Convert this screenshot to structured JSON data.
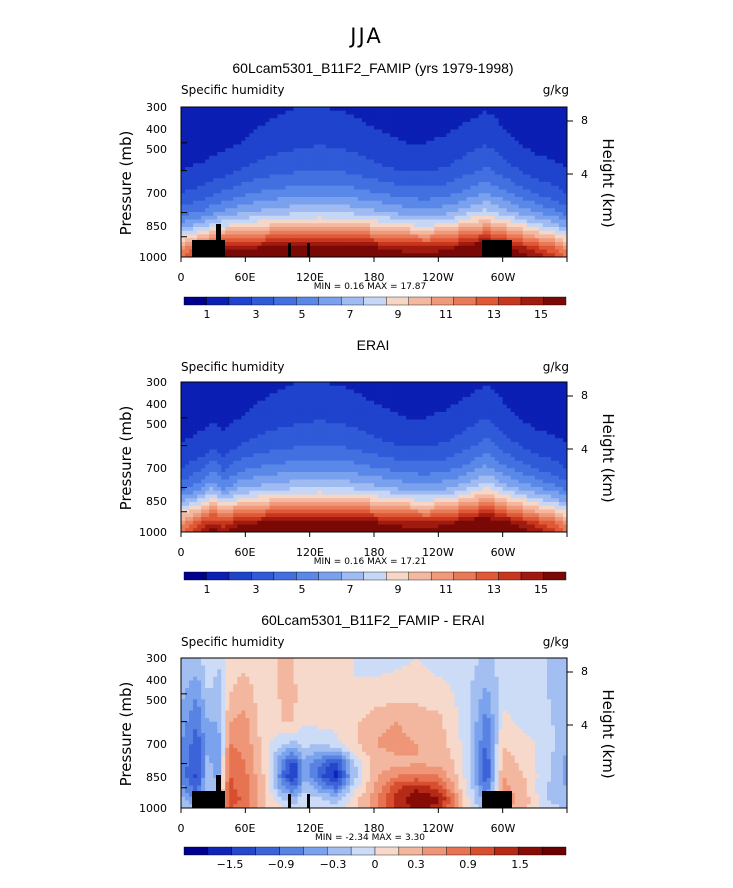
{
  "figure": {
    "title": "JJA"
  },
  "chart_data": [
    {
      "type": "heatmap",
      "title": "60Lcam5301_B11F2_FAMIP (yrs 1979-1998)",
      "left_label": "Specific humidity",
      "units": "g/kg",
      "xlabel": "",
      "ylabel": "Pressure (mb)",
      "ylabel_right": "Height (km)",
      "x_ticks": [
        "0",
        "60E",
        "120E",
        "180",
        "120W",
        "60W"
      ],
      "y_ticks": [
        "300",
        "400",
        "500",
        "700",
        "850",
        "1000"
      ],
      "y_right_ticks": [
        "8",
        "4"
      ],
      "stats": {
        "min_label": "MIN =",
        "min": "0.16",
        "max_label": "MAX =",
        "max": "17.87"
      },
      "colorbar_labels": [
        "1",
        "3",
        "5",
        "7",
        "9",
        "11",
        "13",
        "15"
      ],
      "colorbar_levels": [
        0,
        1,
        2,
        3,
        4,
        5,
        6,
        7,
        8,
        9,
        10,
        11,
        12,
        13,
        14,
        15,
        16
      ],
      "columns_lon": [
        0,
        20,
        30,
        40,
        55,
        70,
        90,
        110,
        130,
        150,
        170,
        190,
        210,
        230,
        250,
        270,
        285,
        300,
        315,
        330,
        350,
        360
      ],
      "pressure_rows": [
        300,
        400,
        500,
        600,
        700,
        775,
        850,
        925,
        1000
      ],
      "values": [
        [
          0.4,
          0.4,
          0.4,
          0.4,
          0.5,
          0.6,
          0.8,
          1.0,
          1.0,
          0.9,
          0.7,
          0.5,
          0.4,
          0.4,
          0.5,
          0.7,
          0.9,
          0.6,
          0.4,
          0.4,
          0.4,
          0.4
        ],
        [
          0.6,
          0.6,
          0.7,
          0.8,
          1.0,
          1.3,
          1.6,
          1.8,
          1.9,
          1.8,
          1.5,
          1.2,
          1.0,
          1.0,
          1.2,
          1.6,
          1.9,
          1.4,
          1.0,
          0.7,
          0.6,
          0.6
        ],
        [
          1.0,
          1.2,
          1.4,
          1.6,
          2.0,
          2.4,
          2.7,
          2.9,
          3.0,
          2.9,
          2.6,
          2.2,
          1.9,
          1.9,
          2.2,
          2.8,
          3.2,
          2.6,
          2.0,
          1.5,
          1.2,
          1.0
        ],
        [
          2.0,
          2.4,
          2.8,
          3.2,
          3.7,
          4.1,
          4.4,
          4.6,
          4.7,
          4.6,
          4.3,
          3.9,
          3.5,
          3.4,
          3.7,
          4.5,
          5.0,
          4.3,
          3.6,
          3.0,
          2.4,
          2.0
        ],
        [
          3.5,
          4.2,
          4.8,
          5.3,
          5.8,
          6.2,
          6.6,
          6.9,
          7.0,
          6.9,
          6.6,
          6.1,
          5.6,
          5.4,
          5.8,
          6.9,
          7.4,
          6.6,
          5.8,
          5.0,
          4.2,
          3.5
        ],
        [
          5.5,
          6.5,
          7.3,
          7.9,
          8.4,
          8.8,
          9.2,
          9.5,
          9.6,
          9.5,
          9.2,
          8.7,
          8.1,
          7.9,
          8.4,
          9.6,
          10.2,
          9.3,
          8.4,
          7.4,
          6.4,
          5.5
        ],
        [
          8.0,
          9.6,
          10.6,
          11.2,
          11.6,
          11.9,
          12.3,
          12.6,
          12.7,
          12.6,
          12.3,
          11.8,
          11.2,
          11.0,
          11.5,
          12.8,
          13.4,
          12.4,
          11.4,
          10.2,
          9.0,
          8.0
        ],
        [
          10.5,
          12.5,
          13.6,
          14.2,
          14.6,
          14.9,
          15.3,
          15.6,
          15.7,
          15.6,
          15.3,
          14.8,
          14.2,
          14.0,
          14.5,
          15.8,
          16.3,
          15.4,
          14.4,
          13.2,
          11.8,
          10.5
        ],
        [
          12.0,
          14.2,
          15.3,
          16.0,
          16.4,
          16.7,
          17.0,
          17.3,
          17.4,
          17.3,
          17.0,
          16.6,
          16.0,
          15.8,
          16.3,
          17.4,
          17.8,
          17.0,
          16.0,
          14.8,
          13.4,
          12.0
        ]
      ]
    },
    {
      "type": "heatmap",
      "title": "ERAI",
      "left_label": "Specific humidity",
      "units": "g/kg",
      "xlabel": "",
      "ylabel": "Pressure (mb)",
      "ylabel_right": "Height (km)",
      "x_ticks": [
        "0",
        "60E",
        "120E",
        "180",
        "120W",
        "60W"
      ],
      "y_ticks": [
        "300",
        "400",
        "500",
        "700",
        "850",
        "1000"
      ],
      "y_right_ticks": [
        "8",
        "4"
      ],
      "stats": {
        "min_label": "MIN =",
        "min": "0.16",
        "max_label": "MAX =",
        "max": "17.21"
      },
      "colorbar_labels": [
        "1",
        "3",
        "5",
        "7",
        "9",
        "11",
        "13",
        "15"
      ],
      "colorbar_levels": [
        0,
        1,
        2,
        3,
        4,
        5,
        6,
        7,
        8,
        9,
        10,
        11,
        12,
        13,
        14,
        15,
        16
      ],
      "columns_lon": [
        0,
        20,
        30,
        40,
        55,
        70,
        90,
        110,
        130,
        150,
        170,
        190,
        210,
        230,
        250,
        270,
        285,
        300,
        315,
        330,
        350,
        360
      ],
      "pressure_rows": [
        300,
        400,
        500,
        600,
        700,
        775,
        850,
        925,
        1000
      ],
      "values": [
        [
          0.4,
          0.4,
          0.4,
          0.4,
          0.5,
          0.6,
          0.8,
          1.0,
          1.0,
          0.9,
          0.7,
          0.5,
          0.4,
          0.4,
          0.5,
          0.7,
          0.9,
          0.6,
          0.4,
          0.4,
          0.4,
          0.4
        ],
        [
          0.6,
          0.7,
          0.9,
          0.7,
          1.0,
          1.3,
          1.6,
          1.8,
          1.9,
          1.8,
          1.5,
          1.2,
          1.0,
          1.0,
          1.2,
          1.6,
          2.0,
          1.4,
          1.0,
          0.7,
          0.6,
          0.6
        ],
        [
          1.0,
          1.4,
          1.9,
          1.4,
          2.0,
          2.4,
          2.7,
          2.9,
          3.0,
          2.9,
          2.6,
          2.2,
          1.9,
          1.9,
          2.2,
          2.8,
          3.4,
          2.6,
          2.0,
          1.5,
          1.2,
          1.0
        ],
        [
          2.0,
          2.8,
          3.6,
          2.8,
          3.7,
          4.1,
          4.4,
          4.6,
          4.7,
          4.6,
          4.3,
          3.9,
          3.5,
          3.4,
          3.7,
          4.5,
          5.3,
          4.3,
          3.6,
          3.0,
          2.4,
          2.0
        ],
        [
          3.5,
          4.8,
          6.0,
          4.5,
          5.8,
          6.2,
          6.6,
          6.9,
          7.0,
          6.9,
          6.6,
          6.1,
          5.6,
          5.4,
          5.8,
          6.9,
          7.9,
          6.6,
          5.8,
          5.0,
          4.2,
          3.5
        ],
        [
          5.5,
          7.4,
          8.6,
          7.0,
          8.4,
          8.8,
          9.2,
          9.5,
          9.6,
          9.5,
          9.2,
          8.7,
          8.1,
          7.9,
          8.4,
          9.6,
          10.6,
          9.3,
          8.4,
          7.4,
          6.4,
          5.5
        ],
        [
          8.0,
          10.4,
          11.4,
          10.4,
          11.6,
          11.9,
          12.3,
          12.6,
          12.7,
          12.6,
          12.3,
          11.8,
          11.2,
          11.0,
          11.5,
          12.8,
          13.6,
          12.4,
          11.4,
          10.2,
          9.0,
          8.0
        ],
        [
          10.5,
          13.0,
          14.0,
          13.2,
          14.6,
          14.9,
          15.3,
          15.6,
          15.7,
          15.6,
          15.3,
          14.8,
          14.2,
          14.0,
          14.5,
          15.8,
          16.2,
          15.4,
          14.4,
          13.2,
          11.8,
          10.5
        ],
        [
          12.0,
          14.6,
          15.6,
          15.0,
          16.4,
          16.7,
          17.0,
          17.2,
          17.2,
          17.2,
          17.0,
          16.6,
          16.0,
          15.8,
          16.3,
          17.2,
          17.2,
          17.0,
          16.0,
          14.8,
          13.4,
          12.0
        ]
      ]
    },
    {
      "type": "heatmap",
      "title": "60Lcam5301_B11F2_FAMIP - ERAI",
      "left_label": "Specific humidity",
      "units": "g/kg",
      "xlabel": "",
      "ylabel": "Pressure (mb)",
      "ylabel_right": "Height (km)",
      "x_ticks": [
        "0",
        "60E",
        "120E",
        "180",
        "120W",
        "60W"
      ],
      "y_ticks": [
        "300",
        "400",
        "500",
        "700",
        "850",
        "1000"
      ],
      "y_right_ticks": [
        "8",
        "4"
      ],
      "stats": {
        "min_label": "MIN =",
        "min": "-2.34",
        "max_label": "MAX =",
        "max": "3.30"
      },
      "colorbar_labels": [
        "−1.5",
        "−0.9",
        "−0.3",
        "0",
        "0.3",
        "0.9",
        "1.5"
      ],
      "colorbar_levels": [
        -2.1,
        -1.8,
        -1.5,
        -1.2,
        -0.9,
        -0.6,
        -0.3,
        0,
        0.3,
        0.6,
        0.9,
        1.2,
        1.5,
        1.8,
        2.1
      ],
      "columns_lon": [
        0,
        15,
        25,
        35,
        45,
        60,
        80,
        95,
        105,
        115,
        130,
        145,
        160,
        180,
        200,
        220,
        240,
        255,
        270,
        285,
        300,
        320,
        340,
        360
      ],
      "pressure_rows": [
        300,
        400,
        500,
        600,
        700,
        775,
        850,
        925,
        1000
      ],
      "values": [
        [
          -0.3,
          -0.4,
          -0.1,
          -0.3,
          0.1,
          0.2,
          0.0,
          0.4,
          0.3,
          0.0,
          0.1,
          0.2,
          0.0,
          -0.1,
          -0.1,
          0.0,
          -0.1,
          -0.1,
          -0.2,
          -0.4,
          -0.2,
          -0.2,
          -0.3,
          -0.3
        ],
        [
          -0.5,
          -0.9,
          -0.3,
          -0.4,
          0.3,
          0.5,
          0.0,
          0.4,
          0.4,
          0.0,
          0.2,
          0.2,
          0.0,
          0.1,
          0.2,
          0.2,
          0.1,
          0.0,
          -0.3,
          -0.7,
          -0.1,
          -0.2,
          -0.3,
          -0.4
        ],
        [
          -0.7,
          -1.2,
          -0.6,
          -0.6,
          0.6,
          0.7,
          0.0,
          0.3,
          0.3,
          0.0,
          0.1,
          0.1,
          0.2,
          0.5,
          0.6,
          0.5,
          0.4,
          0.1,
          -0.3,
          -1.1,
          0.1,
          -0.1,
          -0.2,
          -0.5
        ],
        [
          -0.9,
          -1.4,
          -0.6,
          -0.8,
          0.9,
          0.8,
          0.1,
          -0.3,
          -0.4,
          -0.2,
          -0.3,
          -0.1,
          0.2,
          0.6,
          0.7,
          0.6,
          0.4,
          0.2,
          -0.3,
          -1.3,
          0.3,
          0.1,
          -0.1,
          -0.6
        ],
        [
          -1.0,
          -1.5,
          -0.5,
          -0.8,
          1.1,
          0.9,
          0.1,
          -1.1,
          -1.7,
          -0.7,
          -1.2,
          -1.7,
          -0.4,
          0.4,
          0.5,
          0.6,
          0.5,
          0.3,
          -0.3,
          -1.5,
          0.5,
          0.2,
          -0.2,
          -0.7
        ],
        [
          -1.0,
          -1.6,
          -0.4,
          -0.7,
          1.2,
          1.0,
          0.2,
          -1.2,
          -1.9,
          -0.6,
          -1.4,
          -1.9,
          -0.5,
          0.5,
          0.9,
          1.0,
          0.9,
          0.4,
          -0.3,
          -1.5,
          0.6,
          0.3,
          -0.2,
          -0.7
        ],
        [
          -0.8,
          -1.4,
          -0.3,
          -0.5,
          1.3,
          1.0,
          0.2,
          -0.8,
          -1.2,
          -0.4,
          -0.8,
          -1.2,
          -0.2,
          0.6,
          1.4,
          1.7,
          1.4,
          0.6,
          -0.2,
          -1.2,
          0.7,
          0.4,
          -0.3,
          -0.6
        ],
        [
          -0.5,
          -1.0,
          -0.2,
          -0.3,
          1.4,
          1.1,
          0.3,
          -0.3,
          -0.5,
          -0.1,
          -0.3,
          -0.5,
          0.1,
          0.7,
          1.6,
          2.1,
          1.9,
          0.9,
          -0.1,
          -0.9,
          0.8,
          0.5,
          -0.3,
          -0.5
        ],
        [
          -0.3,
          -0.6,
          -0.1,
          -0.2,
          1.2,
          1.0,
          0.3,
          0.0,
          -0.2,
          0.0,
          -0.1,
          -0.2,
          0.2,
          0.7,
          1.5,
          1.9,
          1.7,
          0.8,
          0.0,
          -0.6,
          0.7,
          0.4,
          -0.2,
          -0.3
        ]
      ]
    }
  ],
  "colors": {
    "full": [
      "#00008f",
      "#0b1fb4",
      "#1f43cc",
      "#2f5ad8",
      "#4270e0",
      "#5a88e8",
      "#7aa1ee",
      "#9fbbf2",
      "#c6d6f5",
      "#f6d6c6",
      "#f4b8a0",
      "#f09a7b",
      "#e87a58",
      "#e05836",
      "#c8361e",
      "#a01a10",
      "#7a0906"
    ],
    "diff": [
      "#00008f",
      "#0f24b8",
      "#2447cc",
      "#3c63d8",
      "#5883e3",
      "#7ba2ec",
      "#a3bff2",
      "#cddcf6",
      "#f7d9cb",
      "#f3b79f",
      "#ee9677",
      "#e67352",
      "#d84f30",
      "#b52a17",
      "#880c06",
      "#6a0000"
    ]
  }
}
